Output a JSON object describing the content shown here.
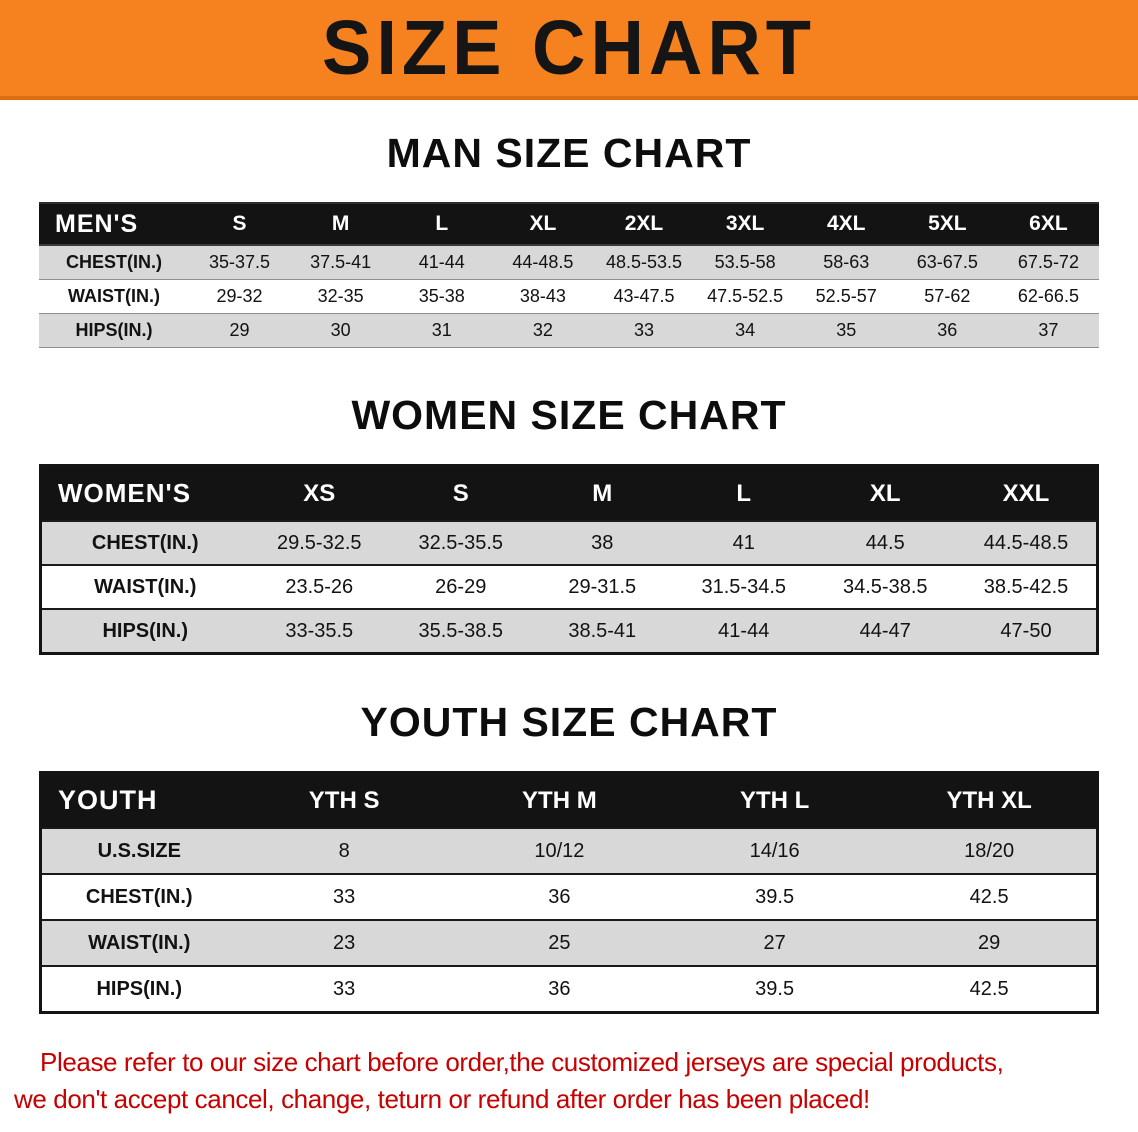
{
  "banner": {
    "title": "SIZE CHART"
  },
  "colors": {
    "banner_bg": "#f6821f",
    "table_header_bg": "#131313",
    "stripe_row_bg": "#d8d8d8",
    "disclaimer_text": "#c70000"
  },
  "sections": [
    {
      "id": "men",
      "heading": "MAN SIZE CHART",
      "table": {
        "corner": "MEN'S",
        "columns": [
          "S",
          "M",
          "L",
          "XL",
          "2XL",
          "3XL",
          "4XL",
          "5XL",
          "6XL"
        ],
        "rows": [
          {
            "label": "CHEST(IN.)",
            "values": [
              "35-37.5",
              "37.5-41",
              "41-44",
              "44-48.5",
              "48.5-53.5",
              "53.5-58",
              "58-63",
              "63-67.5",
              "67.5-72"
            ]
          },
          {
            "label": "WAIST(IN.)",
            "values": [
              "29-32",
              "32-35",
              "35-38",
              "38-43",
              "43-47.5",
              "47.5-52.5",
              "52.5-57",
              "57-62",
              "62-66.5"
            ]
          },
          {
            "label": "HIPS(IN.)",
            "values": [
              "29",
              "30",
              "31",
              "32",
              "33",
              "34",
              "35",
              "36",
              "37"
            ]
          }
        ]
      }
    },
    {
      "id": "women",
      "heading": "WOMEN SIZE CHART",
      "table": {
        "corner": "WOMEN'S",
        "columns": [
          "XS",
          "S",
          "M",
          "L",
          "XL",
          "XXL"
        ],
        "rows": [
          {
            "label": "CHEST(IN.)",
            "values": [
              "29.5-32.5",
              "32.5-35.5",
              "38",
              "41",
              "44.5",
              "44.5-48.5"
            ]
          },
          {
            "label": "WAIST(IN.)",
            "values": [
              "23.5-26",
              "26-29",
              "29-31.5",
              "31.5-34.5",
              "34.5-38.5",
              "38.5-42.5"
            ]
          },
          {
            "label": "HIPS(IN.)",
            "values": [
              "33-35.5",
              "35.5-38.5",
              "38.5-41",
              "41-44",
              "44-47",
              "47-50"
            ]
          }
        ]
      }
    },
    {
      "id": "youth",
      "heading": "YOUTH SIZE CHART",
      "table": {
        "corner": "YOUTH",
        "columns": [
          "YTH S",
          "YTH M",
          "YTH L",
          "YTH XL"
        ],
        "rows": [
          {
            "label": "U.S.SIZE",
            "values": [
              "8",
              "10/12",
              "14/16",
              "18/20"
            ]
          },
          {
            "label": "CHEST(IN.)",
            "values": [
              "33",
              "36",
              "39.5",
              "42.5"
            ]
          },
          {
            "label": "WAIST(IN.)",
            "values": [
              "23",
              "25",
              "27",
              "29"
            ]
          },
          {
            "label": "HIPS(IN.)",
            "values": [
              "33",
              "36",
              "39.5",
              "42.5"
            ]
          }
        ]
      }
    }
  ],
  "disclaimer": {
    "line1": "Please refer to our size chart before order,the customized jerseys are special products,",
    "line2": "we don't accept cancel, change, teturn or refund after order has been placed!"
  }
}
